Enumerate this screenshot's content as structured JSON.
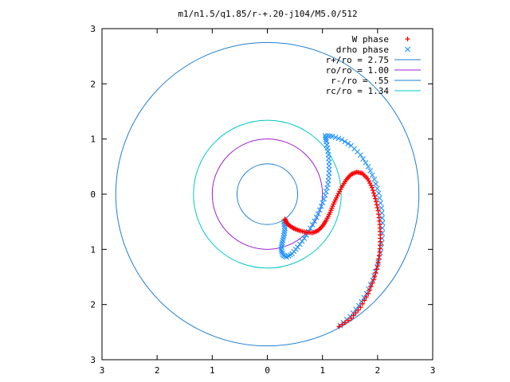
{
  "chart_data": {
    "type": "scatter",
    "title": "m1/n1.5/q1.85/r-+.20-j104/M5.0/512",
    "xlabel": "",
    "ylabel": "",
    "xlim": [
      -3,
      3
    ],
    "ylim": [
      -3,
      3
    ],
    "x_ticks": [
      -3,
      -2,
      -1,
      0,
      1,
      2,
      3
    ],
    "y_ticks": [
      -3,
      -2,
      -1,
      0,
      1,
      2,
      3
    ],
    "x_tick_labels": [
      "3",
      "2",
      "1",
      "0",
      "1",
      "2",
      "3"
    ],
    "y_tick_labels": [
      "3",
      "2",
      "1",
      "0",
      "1",
      "2",
      "3"
    ],
    "grid": false,
    "legend_position": "top-right",
    "circles": [
      {
        "label": "r+/ro = 2.75",
        "radius": 2.75,
        "color": "#1f7fd0"
      },
      {
        "label": "ro/ro = 1.00",
        "radius": 1.0,
        "color": "#a020d0"
      },
      {
        "label": "r-/ro = .55",
        "radius": 0.55,
        "color": "#1f7fd0"
      },
      {
        "label": "rc/ro = 1.34",
        "radius": 1.34,
        "color": "#00c8c8"
      }
    ],
    "series": [
      {
        "name": "W phase",
        "marker": "+",
        "color": "#ff0000",
        "points": [
          [
            0.32,
            -0.45
          ],
          [
            0.35,
            -0.52
          ],
          [
            0.4,
            -0.57
          ],
          [
            0.48,
            -0.62
          ],
          [
            0.58,
            -0.66
          ],
          [
            0.7,
            -0.69
          ],
          [
            0.82,
            -0.7
          ],
          [
            0.92,
            -0.66
          ],
          [
            1.0,
            -0.58
          ],
          [
            1.07,
            -0.47
          ],
          [
            1.14,
            -0.33
          ],
          [
            1.2,
            -0.18
          ],
          [
            1.27,
            -0.03
          ],
          [
            1.35,
            0.13
          ],
          [
            1.43,
            0.26
          ],
          [
            1.52,
            0.36
          ],
          [
            1.62,
            0.4
          ],
          [
            1.72,
            0.38
          ],
          [
            1.82,
            0.28
          ],
          [
            1.9,
            0.12
          ],
          [
            1.96,
            -0.08
          ],
          [
            2.01,
            -0.3
          ],
          [
            2.04,
            -0.55
          ],
          [
            2.05,
            -0.8
          ],
          [
            2.04,
            -1.05
          ],
          [
            2.0,
            -1.3
          ],
          [
            1.93,
            -1.55
          ],
          [
            1.83,
            -1.8
          ],
          [
            1.69,
            -2.05
          ],
          [
            1.52,
            -2.25
          ],
          [
            1.3,
            -2.4
          ]
        ]
      },
      {
        "name": "drho phase",
        "marker": "x",
        "color": "#1e90ff",
        "points": [
          [
            1.32,
            -2.38
          ],
          [
            1.5,
            -2.22
          ],
          [
            1.66,
            -2.02
          ],
          [
            1.8,
            -1.8
          ],
          [
            1.91,
            -1.56
          ],
          [
            1.99,
            -1.32
          ],
          [
            2.05,
            -1.06
          ],
          [
            2.08,
            -0.8
          ],
          [
            2.09,
            -0.52
          ],
          [
            2.07,
            -0.25
          ],
          [
            2.02,
            0.02
          ],
          [
            1.94,
            0.27
          ],
          [
            1.83,
            0.5
          ],
          [
            1.69,
            0.71
          ],
          [
            1.52,
            0.88
          ],
          [
            1.35,
            0.99
          ],
          [
            1.18,
            1.05
          ],
          [
            1.05,
            1.06
          ],
          [
            1.07,
            0.95
          ],
          [
            1.1,
            0.78
          ],
          [
            1.12,
            0.58
          ],
          [
            1.12,
            0.38
          ],
          [
            1.1,
            0.18
          ],
          [
            1.05,
            -0.02
          ],
          [
            0.98,
            -0.22
          ],
          [
            0.89,
            -0.42
          ],
          [
            0.78,
            -0.62
          ],
          [
            0.67,
            -0.8
          ],
          [
            0.55,
            -0.96
          ],
          [
            0.45,
            -1.08
          ],
          [
            0.35,
            -1.14
          ],
          [
            0.28,
            -1.1
          ],
          [
            0.25,
            -1.0
          ],
          [
            0.27,
            -0.88
          ],
          [
            0.3,
            -0.75
          ],
          [
            0.32,
            -0.62
          ],
          [
            0.3,
            -0.5
          ]
        ]
      }
    ],
    "legend": [
      {
        "label": "W phase",
        "kind": "marker-plus",
        "color": "#ff0000"
      },
      {
        "label": "drho phase",
        "kind": "marker-x",
        "color": "#1e90ff"
      },
      {
        "label": "r+/ro = 2.75",
        "kind": "line",
        "color": "#1f7fd0"
      },
      {
        "label": "ro/ro = 1.00",
        "kind": "line",
        "color": "#a020d0"
      },
      {
        "label": "r-/ro = .55",
        "kind": "line",
        "color": "#1f7fd0"
      },
      {
        "label": "rc/ro = 1.34",
        "kind": "line",
        "color": "#00c8c8"
      }
    ]
  }
}
